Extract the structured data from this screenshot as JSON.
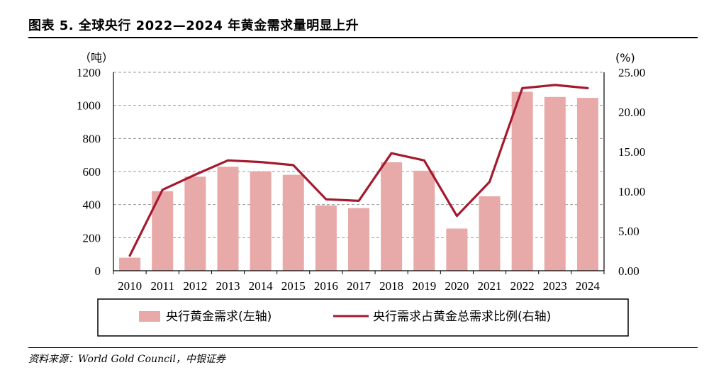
{
  "figure": {
    "title": "图表 5. 全球央行 2022—2024 年黄金需求量明显上升",
    "source": "资料来源：World Gold Council，中银证券"
  },
  "chart_data": {
    "type": "bar",
    "categories": [
      "2010",
      "2011",
      "2012",
      "2013",
      "2014",
      "2015",
      "2016",
      "2017",
      "2018",
      "2019",
      "2020",
      "2021",
      "2022",
      "2023",
      "2024"
    ],
    "series": [
      {
        "name": "央行黄金需求(左轴)",
        "type": "bar",
        "axis": "left",
        "color": "#e8a9a9",
        "values": [
          79,
          481,
          569,
          629,
          601,
          580,
          395,
          379,
          656,
          605,
          255,
          450,
          1082,
          1051,
          1045
        ]
      },
      {
        "name": "央行需求占黄金总需求比例(右轴)",
        "type": "line",
        "axis": "right",
        "color": "#a31a2e",
        "values": [
          1.9,
          10.2,
          12.1,
          13.9,
          13.7,
          13.3,
          9.0,
          8.8,
          14.8,
          13.9,
          6.9,
          11.2,
          23.0,
          23.4,
          23.0
        ]
      }
    ],
    "left_axis": {
      "unit": "（吨）",
      "min": 0,
      "max": 1200,
      "ticks": [
        "0",
        "200",
        "400",
        "600",
        "800",
        "1000",
        "1200"
      ]
    },
    "right_axis": {
      "unit": "(%)",
      "min": 0,
      "max": 25,
      "ticks": [
        "0.00",
        "5.00",
        "10.00",
        "15.00",
        "20.00",
        "25.00"
      ]
    },
    "grid": "horizontal-dashed",
    "legend_position": "bottom"
  }
}
